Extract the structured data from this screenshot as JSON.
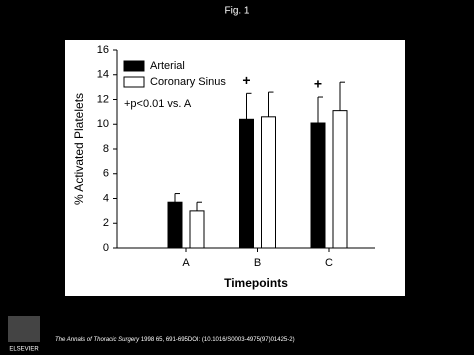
{
  "chart_data": {
    "type": "bar",
    "page_title": "Fig. 1",
    "x_label": "Timepoints",
    "y_label": "% Activated Platelets",
    "categories": [
      "A",
      "B",
      "C"
    ],
    "series": [
      {
        "name": "Arterial",
        "color": "#000000",
        "values": [
          3.7,
          10.4,
          10.1
        ],
        "errors": [
          0.7,
          2.1,
          2.1
        ]
      },
      {
        "name": "Coronary Sinus",
        "color": "#ffffff",
        "values": [
          3.0,
          10.6,
          11.1
        ],
        "errors": [
          0.7,
          2.0,
          2.3
        ]
      }
    ],
    "legend_note": "+p<0.01 vs. A",
    "annotations": [
      {
        "text": "+",
        "category": "B"
      },
      {
        "text": "+",
        "category": "C"
      }
    ],
    "ylim": [
      0,
      16
    ],
    "yticks": [
      0,
      2,
      4,
      6,
      8,
      10,
      12,
      14,
      16
    ],
    "legend": "upper left"
  },
  "footer": {
    "journal": "The Annals of Thoracic Surgery",
    "citation": " 1998 65, 691-695DOI: (10.1016/S0003-4975(97)01425-2)",
    "publisher": "ELSEVIER"
  }
}
